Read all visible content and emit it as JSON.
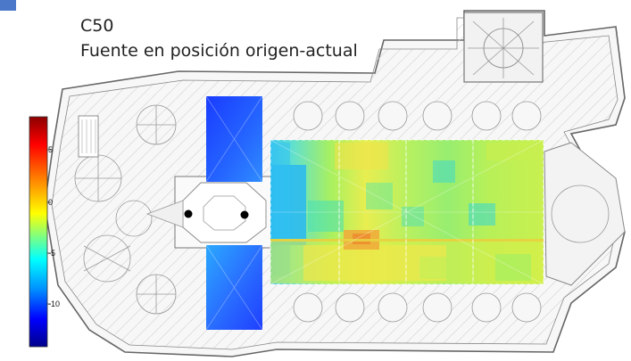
{
  "title": "C50",
  "subtitle": "Fuente en posición origen-actual",
  "colorbar": {
    "ticks": [
      "5",
      "0",
      "-5",
      "-10"
    ],
    "colors": [
      "#8b0000",
      "#ff0000",
      "#ff8c00",
      "#ffff00",
      "#7fff7f",
      "#00ffff",
      "#007fff",
      "#0000ff",
      "#00008b"
    ]
  },
  "heatmap_colors": {
    "blue_dark": "#1e3cff",
    "blue_mid": "#2a7fff",
    "cyan": "#33ccee",
    "green": "#8ef06a",
    "yellow": "#f5e34a",
    "orange": "#f2a23a"
  },
  "markers": [
    {
      "label": "source"
    },
    {
      "label": "receiver"
    }
  ]
}
